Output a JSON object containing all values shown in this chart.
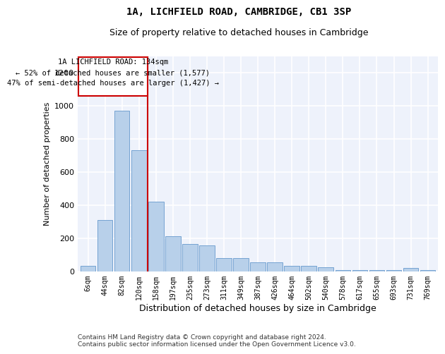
{
  "title1": "1A, LICHFIELD ROAD, CAMBRIDGE, CB1 3SP",
  "title2": "Size of property relative to detached houses in Cambridge",
  "xlabel": "Distribution of detached houses by size in Cambridge",
  "ylabel": "Number of detached properties",
  "categories": [
    "6sqm",
    "44sqm",
    "82sqm",
    "120sqm",
    "158sqm",
    "197sqm",
    "235sqm",
    "273sqm",
    "311sqm",
    "349sqm",
    "387sqm",
    "426sqm",
    "464sqm",
    "502sqm",
    "540sqm",
    "578sqm",
    "617sqm",
    "655sqm",
    "693sqm",
    "731sqm",
    "769sqm"
  ],
  "values": [
    30,
    310,
    970,
    730,
    420,
    210,
    165,
    155,
    80,
    80,
    55,
    55,
    30,
    30,
    25,
    5,
    5,
    5,
    5,
    20,
    5
  ],
  "bar_color": "#b8d0ea",
  "bar_edge_color": "#6699cc",
  "annotation_box_color": "#cc0000",
  "annotation_line_color": "#cc0000",
  "property_line_x": 3.5,
  "annotation_text_line1": "1A LICHFIELD ROAD: 134sqm",
  "annotation_text_line2": "← 52% of detached houses are smaller (1,577)",
  "annotation_text_line3": "47% of semi-detached houses are larger (1,427) →",
  "footer1": "Contains HM Land Registry data © Crown copyright and database right 2024.",
  "footer2": "Contains public sector information licensed under the Open Government Licence v3.0.",
  "background_color": "#eef2fb",
  "ylim": [
    0,
    1300
  ],
  "yticks": [
    0,
    200,
    400,
    600,
    800,
    1000,
    1200
  ]
}
